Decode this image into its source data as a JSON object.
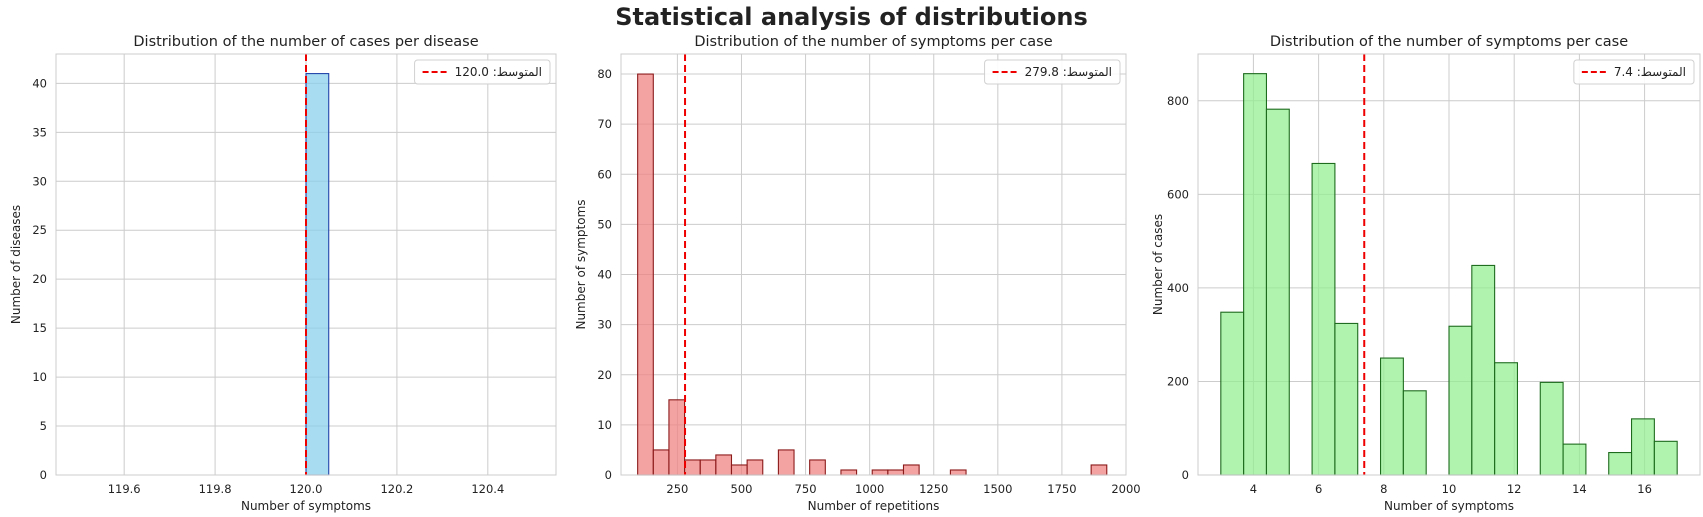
{
  "suptitle": "Statistical analysis of distributions",
  "colors": {
    "grid": "#cccccc",
    "spine": "#cccccc",
    "mean_line": "#ee0000",
    "text": "#222222"
  },
  "chart_data": [
    {
      "type": "bar",
      "title": "Distribution of the number of cases per disease",
      "xlabel": "Number of symptoms",
      "ylabel": "Number of diseases",
      "xlim": [
        119.45,
        120.55
      ],
      "ylim": [
        0,
        43
      ],
      "xticks": [
        119.6,
        119.8,
        120.0,
        120.2,
        120.4
      ],
      "xtick_labels": [
        "119.6",
        "119.8",
        "120.0",
        "120.2",
        "120.4"
      ],
      "yticks": [
        0,
        5,
        10,
        15,
        20,
        25,
        30,
        35,
        40
      ],
      "ytick_labels": [
        "0",
        "5",
        "10",
        "15",
        "20",
        "25",
        "30",
        "35",
        "40"
      ],
      "grid": true,
      "fill_color": "#87ceeb",
      "edge_color": "#2244aa",
      "bins": [
        {
          "x0": 119.5,
          "x1": 120.0,
          "count": 0
        },
        {
          "x0": 120.0,
          "x1": 120.05,
          "count": 41
        },
        {
          "x0": 120.05,
          "x1": 120.5,
          "count": 0
        }
      ],
      "mean": 120.0,
      "legend": {
        "label": "المتوسط: 120.0",
        "location": "upper right"
      }
    },
    {
      "type": "bar",
      "title": "Distribution of the number of symptoms per case",
      "xlabel": "Number of repetitions",
      "ylabel": "Number of symptoms",
      "xlim": [
        30,
        2000
      ],
      "ylim": [
        0,
        84
      ],
      "xticks": [
        250,
        500,
        750,
        1000,
        1250,
        1500,
        1750,
        2000
      ],
      "xtick_labels": [
        "250",
        "500",
        "750",
        "1000",
        "1250",
        "1500",
        "1750",
        "2000"
      ],
      "yticks": [
        0,
        10,
        20,
        30,
        40,
        50,
        60,
        70,
        80
      ],
      "ytick_labels": [
        "0",
        "10",
        "20",
        "30",
        "40",
        "50",
        "60",
        "70",
        "80"
      ],
      "grid": true,
      "fill_color": "#f08080",
      "edge_color": "#8b1a1a",
      "bins": [
        {
          "x0": 95,
          "x1": 156,
          "count": 80
        },
        {
          "x0": 156,
          "x1": 217,
          "count": 5
        },
        {
          "x0": 217,
          "x1": 278,
          "count": 15
        },
        {
          "x0": 278,
          "x1": 339,
          "count": 3
        },
        {
          "x0": 339,
          "x1": 400,
          "count": 3
        },
        {
          "x0": 400,
          "x1": 461,
          "count": 4
        },
        {
          "x0": 461,
          "x1": 522,
          "count": 2
        },
        {
          "x0": 522,
          "x1": 583,
          "count": 3
        },
        {
          "x0": 644,
          "x1": 705,
          "count": 5
        },
        {
          "x0": 766,
          "x1": 827,
          "count": 3
        },
        {
          "x0": 888,
          "x1": 949,
          "count": 1
        },
        {
          "x0": 1010,
          "x1": 1071,
          "count": 1
        },
        {
          "x0": 1071,
          "x1": 1132,
          "count": 1
        },
        {
          "x0": 1132,
          "x1": 1193,
          "count": 2
        },
        {
          "x0": 1315,
          "x1": 1376,
          "count": 1
        },
        {
          "x0": 1864,
          "x1": 1925,
          "count": 2
        }
      ],
      "mean": 279.8,
      "legend": {
        "label": "المتوسط: 279.8",
        "location": "upper right"
      }
    },
    {
      "type": "bar",
      "title": "Distribution of the number of symptoms per case",
      "xlabel": "Number of symptoms",
      "ylabel": "Number of cases",
      "xlim": [
        2.3,
        17.7
      ],
      "ylim": [
        0,
        900
      ],
      "xticks": [
        4,
        6,
        8,
        10,
        12,
        14,
        16
      ],
      "xtick_labels": [
        "4",
        "6",
        "8",
        "10",
        "12",
        "14",
        "16"
      ],
      "yticks": [
        0,
        200,
        400,
        600,
        800
      ],
      "ytick_labels": [
        "0",
        "200",
        "400",
        "600",
        "800"
      ],
      "grid": true,
      "fill_color": "#90ee90",
      "edge_color": "#1e6b1e",
      "bins": [
        {
          "x0": 3.0,
          "x1": 3.7,
          "count": 348
        },
        {
          "x0": 3.7,
          "x1": 4.4,
          "count": 858
        },
        {
          "x0": 4.4,
          "x1": 5.1,
          "count": 782
        },
        {
          "x0": 5.8,
          "x1": 6.5,
          "count": 666
        },
        {
          "x0": 6.5,
          "x1": 7.2,
          "count": 324
        },
        {
          "x0": 7.9,
          "x1": 8.6,
          "count": 250
        },
        {
          "x0": 8.6,
          "x1": 9.3,
          "count": 180
        },
        {
          "x0": 10.0,
          "x1": 10.7,
          "count": 318
        },
        {
          "x0": 10.7,
          "x1": 11.4,
          "count": 448
        },
        {
          "x0": 11.4,
          "x1": 12.1,
          "count": 240
        },
        {
          "x0": 12.8,
          "x1": 13.5,
          "count": 198
        },
        {
          "x0": 13.5,
          "x1": 14.2,
          "count": 66
        },
        {
          "x0": 14.9,
          "x1": 15.6,
          "count": 48
        },
        {
          "x0": 15.6,
          "x1": 16.3,
          "count": 120
        },
        {
          "x0": 16.3,
          "x1": 17.0,
          "count": 72
        }
      ],
      "mean": 7.4,
      "legend": {
        "label": "المتوسط: 7.4",
        "location": "upper right"
      }
    }
  ]
}
